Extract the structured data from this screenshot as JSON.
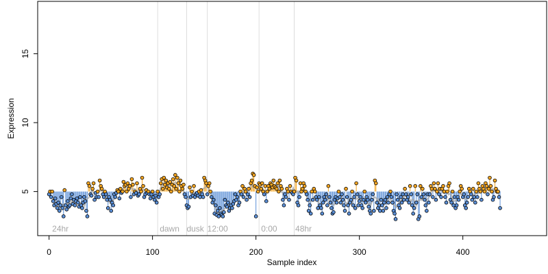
{
  "chart_data": {
    "type": "scatter",
    "xlabel": "Sample index",
    "ylabel": "Expression",
    "xlim": [
      -11,
      481
    ],
    "ylim": [
      1.8,
      18.8
    ],
    "xticks": [
      0,
      100,
      200,
      300,
      400
    ],
    "yticks": [
      5,
      10,
      15
    ],
    "baseline": 5,
    "colors": {
      "above": "#f5a623",
      "below": "#5b8fd6",
      "smooth": "#a9a9a9",
      "vline": "#dcdcdc",
      "annotation": "#a8a8a8",
      "point_fill": "#c9c9c9"
    },
    "vlines": [
      105,
      133,
      153,
      203,
      237
    ],
    "annotations": [
      {
        "x": 3,
        "text": "24hr"
      },
      {
        "x": 107,
        "text": "dawn"
      },
      {
        "x": 133,
        "text": "dusk"
      },
      {
        "x": 153,
        "text": "12:00"
      },
      {
        "x": 205,
        "text": "0:00"
      },
      {
        "x": 238,
        "text": "48hr"
      }
    ],
    "smooth_color_note": "grey",
    "values": [
      4.8,
      5.0,
      4.6,
      5.0,
      4.3,
      4.0,
      4.5,
      4.1,
      3.8,
      4.2,
      3.6,
      4.0,
      4.6,
      3.8,
      3.2,
      5.1,
      4.0,
      3.7,
      4.3,
      3.9,
      4.0,
      4.5,
      4.8,
      4.1,
      4.4,
      4.0,
      4.3,
      4.5,
      4.2,
      3.9,
      4.6,
      4.0,
      3.8,
      4.2,
      4.6,
      4.3,
      3.6,
      3.2,
      5.6,
      5.4,
      4.8,
      4.7,
      5.2,
      5.6,
      4.4,
      4.9,
      4.6,
      5.0,
      4.6,
      5.8,
      5.4,
      5.2,
      4.8,
      4.6,
      5.0,
      4.8,
      4.4,
      3.8,
      4.6,
      4.4,
      3.6,
      4.2,
      4.0,
      4.8,
      4.6,
      4.9,
      5.1,
      5.0,
      4.5,
      5.2,
      4.9,
      5.0,
      5.7,
      5.4,
      5.5,
      5.0,
      5.6,
      5.2,
      5.4,
      4.6,
      5.9,
      5.5,
      4.8,
      5.0,
      4.9,
      5.6,
      4.7,
      4.8,
      5.2,
      5.0,
      6.0,
      5.4,
      4.6,
      4.8,
      5.1,
      4.9,
      5.0,
      4.8,
      4.5,
      4.8,
      5.0,
      4.6,
      4.4,
      4.7,
      4.2,
      5.0,
      4.6,
      4.8,
      5.6,
      5.9,
      5.2,
      6.0,
      5.5,
      5.8,
      5.3,
      5.6,
      5.2,
      5.7,
      5.0,
      5.5,
      5.9,
      5.4,
      6.2,
      5.2,
      6.0,
      5.6,
      5.0,
      5.8,
      5.4,
      5.2,
      5.5,
      4.8,
      4.6,
      4.0,
      3.8,
      3.9,
      5.3,
      4.6,
      5.0,
      4.7,
      5.4,
      4.6,
      4.8,
      4.9,
      4.7,
      5.0,
      4.6,
      5.1,
      4.8,
      4.6,
      6.0,
      5.8,
      5.6,
      4.8,
      5.4,
      5.6,
      5.0,
      4.6,
      4.2,
      4.4,
      3.4,
      4.0,
      3.3,
      3.6,
      3.2,
      3.8,
      3.4,
      3.3,
      3.2,
      3.5,
      4.4,
      4.0,
      3.9,
      4.2,
      3.6,
      3.8,
      4.0,
      3.8,
      4.1,
      4.3,
      4.8,
      4.4,
      4.6,
      4.0,
      4.2,
      5.0,
      4.8,
      5.4,
      4.6,
      5.2,
      5.0,
      4.4,
      4.8,
      5.2,
      4.6,
      5.6,
      5.8,
      6.3,
      6.2,
      5.4,
      3.2,
      5.3,
      5.0,
      5.6,
      5.5,
      5.2,
      5.6,
      5.0,
      4.8,
      5.4,
      4.3,
      5.0,
      5.4,
      5.2,
      5.6,
      5.5,
      5.3,
      5.8,
      5.4,
      5.3,
      5.2,
      5.6,
      5.0,
      5.8,
      5.4,
      5.2,
      4.4,
      4.0,
      4.8,
      4.6,
      5.2,
      5.0,
      4.4,
      5.4,
      5.0,
      4.9,
      4.8,
      5.0,
      6.0,
      5.8,
      4.2,
      4.0,
      4.6,
      5.6,
      5.0,
      5.2,
      5.6,
      5.4,
      5.0,
      4.8,
      4.4,
      3.6,
      4.0,
      3.4,
      5.0,
      4.4,
      5.2,
      5.0,
      4.6,
      4.4,
      3.8,
      4.6,
      4.0,
      3.8,
      3.4,
      4.2,
      4.6,
      4.4,
      4.8,
      4.0,
      5.4,
      4.6,
      4.2,
      3.8,
      3.4,
      3.5,
      4.4,
      4.6,
      4.2,
      4.5,
      5.0,
      4.6,
      4.2,
      4.8,
      4.4,
      4.0,
      3.6,
      5.2,
      4.6,
      4.0,
      3.4,
      4.2,
      4.4,
      5.0,
      4.0,
      4.6,
      3.8,
      5.6,
      4.8,
      4.0,
      4.3,
      4.6,
      4.0,
      3.8,
      4.4,
      5.0,
      4.2,
      4.6,
      4.4,
      3.9,
      3.6,
      3.4,
      4.4,
      4.8,
      3.6,
      5.8,
      5.6,
      4.2,
      3.8,
      4.0,
      3.6,
      4.4,
      4.0,
      3.6,
      4.2,
      4.4,
      3.8,
      4.6,
      4.2,
      4.8,
      5.0,
      4.6,
      4.2,
      3.6,
      3.4,
      3.0,
      4.8,
      4.4,
      4.0,
      3.8,
      4.6,
      4.2,
      4.8,
      4.4,
      5.2,
      4.8,
      4.4,
      4.6,
      4.2,
      5.4,
      4.8,
      4.0,
      3.4,
      3.8,
      5.4,
      4.2,
      4.8,
      3.0,
      3.2,
      5.4,
      4.6,
      5.2,
      4.8,
      4.4,
      4.0,
      3.6,
      4.8,
      4.2,
      4.8,
      5.4,
      5.2,
      4.6,
      5.6,
      5.2,
      4.4,
      5.0,
      5.6,
      4.8,
      5.2,
      4.6,
      5.2,
      5.4,
      5.0,
      4.6,
      4.2,
      5.0,
      5.4,
      5.6,
      4.4,
      4.2,
      5.0,
      4.0,
      4.6,
      3.8,
      4.0,
      4.6,
      4.4,
      5.0,
      5.4,
      5.2,
      4.6,
      4.8,
      4.0,
      3.8,
      4.2,
      4.6,
      5.2,
      5.0,
      4.8,
      4.4,
      5.2,
      4.6,
      4.2,
      5.0,
      4.6,
      5.6,
      5.2,
      5.0,
      4.4,
      5.4,
      5.2,
      5.0,
      5.6,
      5.4,
      4.8,
      5.2,
      6.0,
      5.4,
      5.0,
      4.4,
      4.6,
      5.8,
      5.2,
      5.0,
      5.0,
      4.6,
      3.8
    ]
  }
}
